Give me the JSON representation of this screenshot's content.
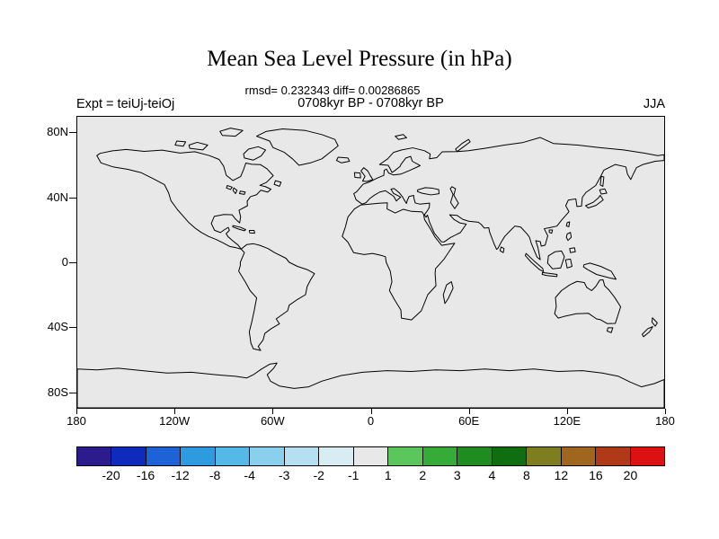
{
  "title": "Mean Sea Level Pressure (in hPa)",
  "stats_line": "rmsd= 0.232343 diff= 0.00286865",
  "header": {
    "left": "Expt = teiUj-teiOj",
    "center": "0708kyr BP - 0708kyr BP",
    "right": "JJA"
  },
  "axes": {
    "lat_ticks": [
      {
        "label": "80N",
        "lat": 80
      },
      {
        "label": "40N",
        "lat": 40
      },
      {
        "label": "0",
        "lat": 0
      },
      {
        "label": "40S",
        "lat": -40
      },
      {
        "label": "80S",
        "lat": -80
      }
    ],
    "lon_ticks": [
      {
        "label": "180",
        "lon": -180
      },
      {
        "label": "120W",
        "lon": -120
      },
      {
        "label": "60W",
        "lon": -60
      },
      {
        "label": "0",
        "lon": 0
      },
      {
        "label": "60E",
        "lon": 60
      },
      {
        "label": "120E",
        "lon": 120
      },
      {
        "label": "180",
        "lon": 180
      }
    ]
  },
  "colorbar": {
    "colors": [
      "#2B1B8C",
      "#0F2BBE",
      "#1E62D8",
      "#2E9BE0",
      "#55B9E8",
      "#8ACFEE",
      "#B4E0F2",
      "#D8ECF4",
      "#E8E8E8",
      "#5BC65B",
      "#37AB37",
      "#1F8C1F",
      "#0F6E0F",
      "#7E7E20",
      "#A0651E",
      "#B03A18",
      "#DD1111"
    ],
    "tick_labels": [
      "-20",
      "-16",
      "-12",
      "-8",
      "-4",
      "-3",
      "-2",
      "-1",
      "1",
      "2",
      "3",
      "4",
      "8",
      "12",
      "16",
      "20"
    ]
  },
  "map": {
    "background": "#E8E8E8",
    "coastline_color": "#000000"
  },
  "chart_data": {
    "type": "map-contour-difference",
    "title": "Mean Sea Level Pressure (in hPa)",
    "subtitle": "0708kyr BP - 0708kyr BP",
    "experiment": "teiUj-teiOj",
    "season": "JJA",
    "units": "hPa",
    "rmsd": 0.232343,
    "diff": 0.00286865,
    "lon_range": [
      -180,
      180
    ],
    "lat_range": [
      -90,
      90
    ],
    "contour_levels": [
      -20,
      -16,
      -12,
      -8,
      -4,
      -3,
      -2,
      -1,
      1,
      2,
      3,
      4,
      8,
      12,
      16,
      20
    ],
    "field_note": "difference field lies within the -1 to 1 bin everywhere; map area rendered uniform light gray with coastlines only"
  }
}
